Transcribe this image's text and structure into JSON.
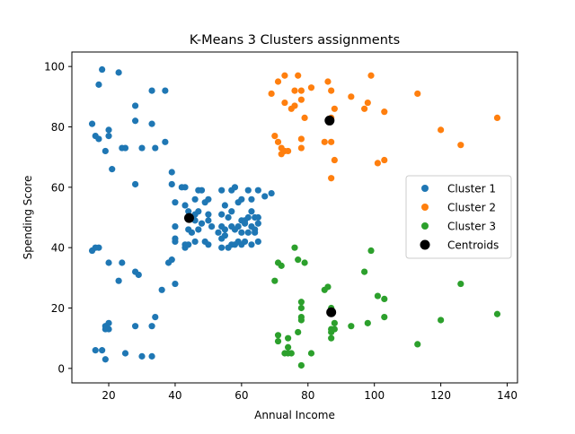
{
  "chart_data": {
    "type": "scatter",
    "title": "K-Means 3 Clusters assignments",
    "xlabel": "Annual Income",
    "ylabel": "Spending Score",
    "xlim": [
      8.9,
      143.1
    ],
    "ylim": [
      -4.8,
      104.8
    ],
    "xticks": [
      20,
      40,
      60,
      80,
      100,
      120,
      140
    ],
    "yticks": [
      0,
      20,
      40,
      60,
      80,
      100
    ],
    "grid": false,
    "legend_position": "center-right",
    "series": [
      {
        "name": "Cluster 1",
        "color": "#1f77b4",
        "points": [
          [
            18,
            99
          ],
          [
            23,
            98
          ],
          [
            17,
            94
          ],
          [
            33,
            92
          ],
          [
            37,
            92
          ],
          [
            28,
            87
          ],
          [
            15,
            81
          ],
          [
            28,
            82
          ],
          [
            33,
            81
          ],
          [
            20,
            79
          ],
          [
            16,
            77
          ],
          [
            20,
            77
          ],
          [
            17,
            76
          ],
          [
            24,
            73
          ],
          [
            25,
            73
          ],
          [
            30,
            73
          ],
          [
            34,
            73
          ],
          [
            37,
            75
          ],
          [
            19,
            72
          ],
          [
            21,
            66
          ],
          [
            39,
            65
          ],
          [
            28,
            61
          ],
          [
            39,
            61
          ],
          [
            42,
            60
          ],
          [
            43,
            60
          ],
          [
            47,
            59
          ],
          [
            48,
            59
          ],
          [
            46,
            56
          ],
          [
            49,
            55
          ],
          [
            50,
            56
          ],
          [
            54,
            59
          ],
          [
            55,
            54
          ],
          [
            57,
            59
          ],
          [
            58,
            60
          ],
          [
            59,
            55
          ],
          [
            60,
            56
          ],
          [
            62,
            59
          ],
          [
            63,
            56
          ],
          [
            65,
            59
          ],
          [
            67,
            57
          ],
          [
            69,
            58
          ],
          [
            40,
            55
          ],
          [
            43,
            54
          ],
          [
            44,
            52
          ],
          [
            46,
            51
          ],
          [
            47,
            52
          ],
          [
            50,
            51
          ],
          [
            54,
            51
          ],
          [
            56,
            50
          ],
          [
            57,
            52
          ],
          [
            60,
            49
          ],
          [
            61,
            49
          ],
          [
            62,
            50
          ],
          [
            63,
            52
          ],
          [
            64,
            50
          ],
          [
            65,
            50
          ],
          [
            46,
            49
          ],
          [
            48,
            48
          ],
          [
            50,
            49
          ],
          [
            54,
            47
          ],
          [
            55,
            46
          ],
          [
            57,
            47
          ],
          [
            58,
            46
          ],
          [
            59,
            47
          ],
          [
            61,
            48
          ],
          [
            63,
            47
          ],
          [
            64,
            46
          ],
          [
            65,
            48
          ],
          [
            40,
            47
          ],
          [
            44,
            46
          ],
          [
            45,
            45
          ],
          [
            47,
            46
          ],
          [
            51,
            47
          ],
          [
            53,
            45
          ],
          [
            55,
            44
          ],
          [
            60,
            45
          ],
          [
            62,
            45
          ],
          [
            64,
            45
          ],
          [
            40,
            42
          ],
          [
            43,
            41
          ],
          [
            46,
            42
          ],
          [
            49,
            42
          ],
          [
            54,
            43
          ],
          [
            57,
            41
          ],
          [
            59,
            42
          ],
          [
            60,
            41
          ],
          [
            61,
            42
          ],
          [
            63,
            41
          ],
          [
            65,
            42
          ],
          [
            17,
            40
          ],
          [
            15,
            39
          ],
          [
            16,
            40
          ],
          [
            40,
            43
          ],
          [
            43,
            40
          ],
          [
            44,
            41
          ],
          [
            50,
            41
          ],
          [
            54,
            40
          ],
          [
            56,
            40
          ],
          [
            58,
            41
          ],
          [
            20,
            35
          ],
          [
            24,
            35
          ],
          [
            36,
            26
          ],
          [
            38,
            35
          ],
          [
            39,
            36
          ],
          [
            40,
            28
          ],
          [
            23,
            29
          ],
          [
            28,
            32
          ],
          [
            29,
            31
          ],
          [
            34,
            17
          ],
          [
            19,
            14
          ],
          [
            19,
            13
          ],
          [
            20,
            13
          ],
          [
            20,
            15
          ],
          [
            28,
            14
          ],
          [
            33,
            14
          ],
          [
            16,
            6
          ],
          [
            18,
            6
          ],
          [
            25,
            5
          ],
          [
            30,
            4
          ],
          [
            33,
            4
          ],
          [
            19,
            3
          ]
        ]
      },
      {
        "name": "Cluster 2",
        "color": "#ff7f0e",
        "points": [
          [
            73,
            97
          ],
          [
            77,
            97
          ],
          [
            99,
            97
          ],
          [
            71,
            95
          ],
          [
            86,
            95
          ],
          [
            76,
            92
          ],
          [
            69,
            91
          ],
          [
            78,
            92
          ],
          [
            81,
            93
          ],
          [
            87,
            92
          ],
          [
            113,
            91
          ],
          [
            93,
            90
          ],
          [
            73,
            88
          ],
          [
            78,
            89
          ],
          [
            76,
            87
          ],
          [
            75,
            86
          ],
          [
            88,
            86
          ],
          [
            97,
            86
          ],
          [
            98,
            88
          ],
          [
            103,
            85
          ],
          [
            79,
            83
          ],
          [
            87,
            83
          ],
          [
            137,
            83
          ],
          [
            120,
            79
          ],
          [
            70,
            77
          ],
          [
            71,
            75
          ],
          [
            85,
            75
          ],
          [
            87,
            75
          ],
          [
            78,
            76
          ],
          [
            126,
            74
          ],
          [
            72,
            73
          ],
          [
            73,
            72
          ],
          [
            74,
            72
          ],
          [
            78,
            73
          ],
          [
            72,
            71
          ],
          [
            88,
            69
          ],
          [
            101,
            68
          ],
          [
            103,
            69
          ],
          [
            87,
            63
          ]
        ]
      },
      {
        "name": "Cluster 3",
        "color": "#2ca02c",
        "points": [
          [
            76,
            40
          ],
          [
            99,
            39
          ],
          [
            77,
            36
          ],
          [
            71,
            35
          ],
          [
            79,
            35
          ],
          [
            72,
            34
          ],
          [
            97,
            32
          ],
          [
            70,
            29
          ],
          [
            126,
            28
          ],
          [
            86,
            27
          ],
          [
            85,
            26
          ],
          [
            101,
            24
          ],
          [
            103,
            23
          ],
          [
            78,
            22
          ],
          [
            78,
            20
          ],
          [
            87,
            20
          ],
          [
            137,
            18
          ],
          [
            78,
            17
          ],
          [
            88,
            15
          ],
          [
            98,
            15
          ],
          [
            120,
            16
          ],
          [
            103,
            17
          ],
          [
            93,
            14
          ],
          [
            78,
            16
          ],
          [
            87,
            13
          ],
          [
            88,
            13
          ],
          [
            87,
            12
          ],
          [
            77,
            12
          ],
          [
            71,
            11
          ],
          [
            74,
            10
          ],
          [
            71,
            9
          ],
          [
            87,
            10
          ],
          [
            113,
            8
          ],
          [
            74,
            7
          ],
          [
            74,
            5
          ],
          [
            73,
            5
          ],
          [
            75,
            5
          ],
          [
            81,
            5
          ],
          [
            78,
            1
          ]
        ]
      },
      {
        "name": "Centroids",
        "color": "#000000",
        "points": [
          [
            44.2,
            49.8
          ],
          [
            86.5,
            82.1
          ],
          [
            87.0,
            18.6
          ]
        ]
      }
    ]
  }
}
